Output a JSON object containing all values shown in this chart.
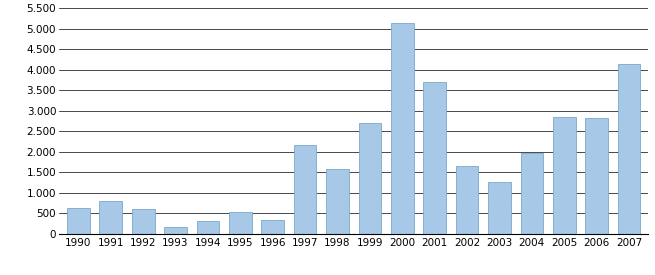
{
  "years": [
    "1990",
    "1991",
    "1992",
    "1993",
    "1994",
    "1995",
    "1996",
    "1997",
    "1998",
    "1999",
    "2000",
    "2001",
    "2002",
    "2003",
    "2004",
    "2005",
    "2006",
    "2007"
  ],
  "values": [
    620,
    810,
    610,
    175,
    310,
    530,
    340,
    2175,
    1590,
    2700,
    5130,
    3700,
    1660,
    1270,
    1970,
    2840,
    2820,
    4140
  ],
  "bar_color": "#a8c8e8",
  "bar_edge_color": "#7aaac8",
  "ylim": [
    0,
    5500
  ],
  "yticks": [
    0,
    500,
    1000,
    1500,
    2000,
    2500,
    3000,
    3500,
    4000,
    4500,
    5000,
    5500
  ],
  "ytick_labels": [
    "0",
    "500",
    "1.000",
    "1.500",
    "2.000",
    "2.500",
    "3.000",
    "3.500",
    "4.000",
    "4.500",
    "5.000",
    "5.500"
  ],
  "background_color": "#ffffff",
  "grid_color": "#000000",
  "tick_fontsize": 7.5,
  "bar_width": 0.7
}
